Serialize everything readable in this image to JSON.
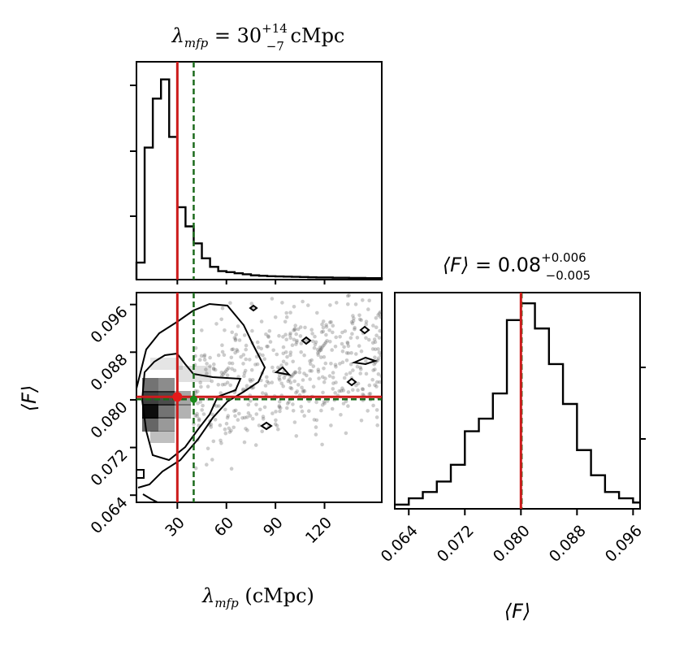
{
  "chart_data": [
    {
      "type": "histogram",
      "panel": "lambda_mfp marginal",
      "title": {
        "prefix": "λ",
        "sub": "mfp",
        "eq": " = 30",
        "plus": "+14",
        "minus": "−7",
        "unit": " cMpc"
      },
      "x_range": [
        5,
        155
      ],
      "bin_edges": [
        5,
        10,
        15,
        20,
        25,
        30,
        35,
        40,
        45,
        50,
        55,
        60,
        65,
        70,
        75,
        80,
        85,
        90,
        95,
        100,
        105,
        110,
        115,
        120,
        125,
        130,
        135,
        140,
        145,
        150,
        155
      ],
      "counts": [
        0.08,
        0.62,
        0.85,
        0.94,
        0.67,
        0.34,
        0.25,
        0.17,
        0.1,
        0.06,
        0.04,
        0.035,
        0.03,
        0.025,
        0.02,
        0.018,
        0.016,
        0.015,
        0.014,
        0.013,
        0.012,
        0.011,
        0.01,
        0.01,
        0.009,
        0.009,
        0.008,
        0.008,
        0.007,
        0.007
      ],
      "median": 30,
      "truth": 40
    },
    {
      "type": "histogram",
      "panel": "F marginal",
      "title": {
        "prefix": "⟨F⟩",
        "eq": " = 0.08",
        "plus": "+0.006",
        "minus": "−0.005"
      },
      "x_range": [
        0.062,
        0.097
      ],
      "bin_edges": [
        0.062,
        0.064,
        0.066,
        0.068,
        0.07,
        0.072,
        0.074,
        0.076,
        0.078,
        0.08,
        0.082,
        0.084,
        0.086,
        0.088,
        0.09,
        0.092,
        0.094,
        0.096,
        0.097
      ],
      "counts": [
        0.02,
        0.05,
        0.08,
        0.13,
        0.21,
        0.37,
        0.43,
        0.55,
        0.9,
        0.98,
        0.86,
        0.69,
        0.5,
        0.28,
        0.16,
        0.08,
        0.05,
        0.03
      ],
      "median": 0.08,
      "truth": 0.0801
    },
    {
      "type": "scatter",
      "panel": "joint lambda_mfp vs F",
      "x_range": [
        5,
        155
      ],
      "y_range": [
        0.0628,
        0.098
      ],
      "median": [
        30,
        0.0805
      ],
      "truth": [
        40,
        0.0801
      ]
    }
  ],
  "axes": {
    "x_lambda_ticks": [
      "30",
      "60",
      "90",
      "120"
    ],
    "x_lambda_values": [
      30,
      60,
      90,
      120
    ],
    "y_F_ticks": [
      "0.064",
      "0.072",
      "0.080",
      "0.088",
      "0.096"
    ],
    "y_F_values": [
      0.064,
      0.072,
      0.08,
      0.088,
      0.096
    ],
    "x_F_ticks": [
      "0.064",
      "0.072",
      "0.080",
      "0.088",
      "0.096"
    ],
    "x_F_values": [
      0.064,
      0.072,
      0.08,
      0.088,
      0.096
    ],
    "xlabel_lambda": {
      "prefix": "λ",
      "sub": "mfp",
      "suffix": " (cMpc)"
    },
    "ylabel_F": "⟨F⟩",
    "xlabel_F": "⟨F⟩"
  },
  "colors": {
    "median": "#cc1b1b",
    "truth": "#1b6a1b",
    "hist": "#000000"
  }
}
